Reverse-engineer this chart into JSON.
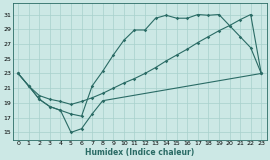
{
  "xlabel": "Humidex (Indice chaleur)",
  "xlim": [
    -0.5,
    23.5
  ],
  "ylim": [
    14.0,
    32.5
  ],
  "xticks": [
    0,
    1,
    2,
    3,
    4,
    5,
    6,
    7,
    8,
    9,
    10,
    11,
    12,
    13,
    14,
    15,
    16,
    17,
    18,
    19,
    20,
    21,
    22,
    23
  ],
  "yticks": [
    15,
    17,
    19,
    21,
    23,
    25,
    27,
    29,
    31
  ],
  "bg_color": "#cce8e5",
  "grid_color": "#a8d0cc",
  "line_color": "#2a6b65",
  "line_upper": {
    "x": [
      0,
      1,
      2,
      3,
      4,
      5,
      6,
      7,
      8,
      9,
      10,
      11,
      12,
      13,
      14,
      15,
      16,
      17,
      18,
      19,
      20,
      21,
      22,
      23
    ],
    "y": [
      23,
      21.3,
      19.5,
      18.5,
      18.0,
      17.5,
      17.2,
      21.3,
      23.3,
      25.5,
      27.5,
      28.9,
      28.9,
      30.5,
      30.9,
      30.5,
      30.5,
      31.0,
      30.9,
      31.0,
      29.5,
      28.0,
      26.5,
      23.0
    ]
  },
  "line_lower": {
    "x": [
      0,
      1,
      2,
      3,
      4,
      5,
      6,
      7,
      8,
      23
    ],
    "y": [
      23,
      21.3,
      19.5,
      18.5,
      18.0,
      15.0,
      15.5,
      17.5,
      19.3,
      23.0
    ]
  },
  "line_diag": {
    "x": [
      0,
      1,
      2,
      3,
      4,
      5,
      6,
      7,
      8,
      9,
      10,
      11,
      12,
      13,
      14,
      15,
      16,
      17,
      18,
      19,
      20,
      21,
      22,
      23
    ],
    "y": [
      23,
      21.3,
      20.0,
      19.5,
      19.2,
      18.8,
      19.2,
      19.7,
      20.3,
      21.0,
      21.7,
      22.3,
      23.0,
      23.8,
      24.7,
      25.5,
      26.3,
      27.2,
      28.0,
      28.8,
      29.5,
      30.3,
      31.0,
      23.0
    ]
  }
}
